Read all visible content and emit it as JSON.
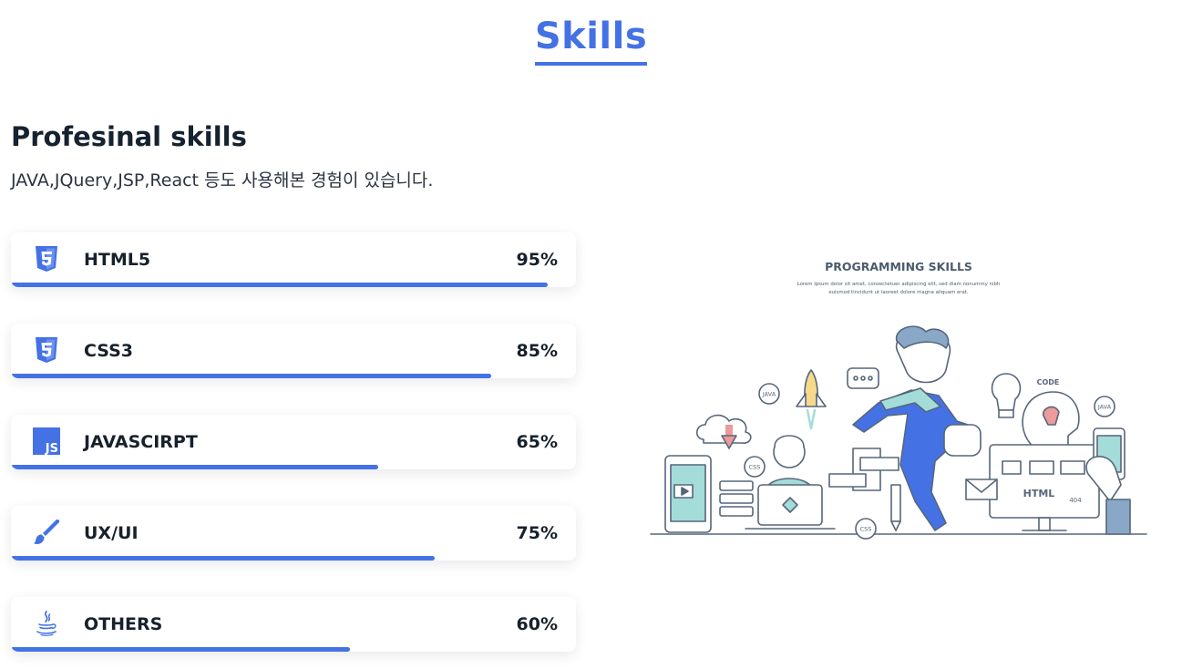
{
  "section": {
    "title": "Skills"
  },
  "professional": {
    "heading": "Profesinal skills",
    "description": "JAVA,JQuery,JSP,React 등도 사용해본 경험이 있습니다."
  },
  "skills": [
    {
      "name": "HTML5",
      "percent_label": "95%",
      "percent": 95,
      "icon": "html5-icon"
    },
    {
      "name": "CSS3",
      "percent_label": "85%",
      "percent": 85,
      "icon": "css3-icon"
    },
    {
      "name": "JAVASCIRPT",
      "percent_label": "65%",
      "percent": 65,
      "icon": "javascript-icon"
    },
    {
      "name": "UX/UI",
      "percent_label": "75%",
      "percent": 75,
      "icon": "paintbrush-icon"
    },
    {
      "name": "OTHERS",
      "percent_label": "60%",
      "percent": 60,
      "icon": "java-icon"
    }
  ],
  "illustration": {
    "title": "PROGRAMMING SKILLS",
    "caption_line1": "Lorem ipsum dolor sit amet, consectetuer adipiscing elit, sed diam nonummy nibh",
    "caption_line2": "euismod tincidunt ut laoreet dolore magna aliquam erat.",
    "labels": {
      "java1": "JAVA",
      "java2": "JAVA",
      "css1": "CSS",
      "css2": "CSS",
      "code": "CODE",
      "html": "HTML",
      "num404": "404"
    }
  },
  "colors": {
    "accent": "#4472e5",
    "text": "#17212c"
  }
}
